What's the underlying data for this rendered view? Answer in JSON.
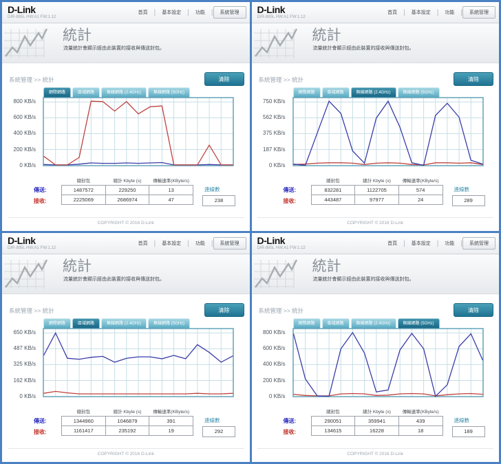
{
  "colors": {
    "frame_blue": "#4a81c2",
    "teal_accent": "#2a7d96",
    "send_line_blue": "#3b3ba8",
    "receive_line_red": "#c0413c"
  },
  "shared": {
    "logo": "D-Link",
    "model": "DIR-895L HW:A1 FW:1.12",
    "nav": {
      "home": "首頁",
      "basic_settings": "基本設定",
      "features": "功能",
      "management": "系統管理",
      "separator": "|"
    },
    "title": "統計",
    "subtitle": "流量統計會顯示經由此裝置的接收與傳送封包。",
    "breadcrumb": "系統管理 >> 統計",
    "clear_button": "清除",
    "tabs": [
      {
        "label": "網際網路"
      },
      {
        "label": "區域網路"
      },
      {
        "label": "無線網路 (2.4GHz)"
      },
      {
        "label": "無線網路 (5GHz)"
      }
    ],
    "table_headers": {
      "packets": "總封包",
      "kbytes": "總計 Kbyte (s)",
      "rate": "傳輸速率(KByte/s)"
    },
    "row_labels": {
      "send": "傳送:",
      "receive": "接收:"
    },
    "connections_label": "連線數",
    "footer": "COPYRIGHT © 2016 D-Link"
  },
  "quadrants": [
    {
      "name": "internet",
      "active_tab": 0,
      "chart": {
        "type": "line",
        "ymax": 800,
        "yticks": [
          "800 KB/s",
          "600 KB/s",
          "400 KB/s",
          "200 KB/s",
          "0 KB/s"
        ],
        "series": [
          {
            "name": "send",
            "color": "#3b3ba8",
            "values": [
              10,
              5,
              5,
              15,
              30,
              25,
              25,
              30,
              25,
              30,
              35,
              5,
              5,
              5,
              10,
              5,
              5
            ]
          },
          {
            "name": "receive",
            "color": "#c0413c",
            "values": [
              115,
              5,
              5,
              100,
              810,
              805,
              685,
              805,
              650,
              740,
              750,
              5,
              5,
              5,
              255,
              5,
              5
            ]
          }
        ]
      },
      "table": {
        "send": {
          "packets": "1487572",
          "kbytes": "229250",
          "rate": "13"
        },
        "receive": {
          "packets": "2225069",
          "kbytes": "2686974",
          "rate": "47"
        }
      },
      "connections": "238"
    },
    {
      "name": "wireless-2.4ghz",
      "active_tab": 2,
      "chart": {
        "type": "line",
        "ymax": 750,
        "yticks": [
          "750 KB/s",
          "562 KB/s",
          "375 KB/s",
          "187 KB/s",
          "0 KB/s"
        ],
        "series": [
          {
            "name": "receive",
            "color": "#c0413c",
            "values": [
              10,
              15,
              25,
              30,
              30,
              25,
              10,
              25,
              30,
              25,
              10,
              5,
              30,
              30,
              25,
              30,
              10
            ]
          },
          {
            "name": "send",
            "color": "#3b3ba8",
            "values": [
              15,
              0,
              380,
              760,
              615,
              170,
              25,
              560,
              760,
              450,
              30,
              0,
              590,
              735,
              570,
              60,
              15
            ]
          }
        ]
      },
      "table": {
        "send": {
          "packets": "832281",
          "kbytes": "1122705",
          "rate": "574"
        },
        "receive": {
          "packets": "443487",
          "kbytes": "97977",
          "rate": "24"
        }
      },
      "connections": "289"
    },
    {
      "name": "lan",
      "active_tab": 1,
      "chart": {
        "type": "line",
        "ymax": 650,
        "yticks": [
          "650 KB/s",
          "487 KB/s",
          "325 KB/s",
          "162 KB/s",
          "0 KB/s"
        ],
        "series": [
          {
            "name": "receive",
            "color": "#c0413c",
            "values": [
              30,
              50,
              35,
              25,
              25,
              25,
              25,
              25,
              25,
              25,
              25,
              25,
              25,
              30,
              25,
              25,
              30
            ]
          },
          {
            "name": "send",
            "color": "#3b3ba8",
            "values": [
              420,
              650,
              390,
              380,
              400,
              410,
              350,
              390,
              405,
              405,
              385,
              420,
              385,
              530,
              450,
              350,
              415
            ]
          }
        ]
      },
      "table": {
        "send": {
          "packets": "1344960",
          "kbytes": "1046879",
          "rate": "391"
        },
        "receive": {
          "packets": "1161417",
          "kbytes": "235192",
          "rate": "19"
        }
      },
      "connections": "292"
    },
    {
      "name": "wireless-5ghz",
      "active_tab": 3,
      "chart": {
        "type": "line",
        "ymax": 800,
        "yticks": [
          "800 KB/s",
          "600 KB/s",
          "400 KB/s",
          "200 KB/s",
          "0 KB/s"
        ],
        "series": [
          {
            "name": "receive",
            "color": "#c0413c",
            "values": [
              25,
              10,
              5,
              5,
              30,
              35,
              30,
              10,
              15,
              30,
              35,
              30,
              5,
              20,
              30,
              35,
              25
            ]
          },
          {
            "name": "send",
            "color": "#3b3ba8",
            "values": [
              790,
              220,
              5,
              0,
              600,
              805,
              545,
              55,
              80,
              585,
              795,
              600,
              0,
              145,
              630,
              790,
              455
            ]
          }
        ]
      },
      "table": {
        "send": {
          "packets": "290051",
          "kbytes": "359941",
          "rate": "439"
        },
        "receive": {
          "packets": "134615",
          "kbytes": "16228",
          "rate": "18"
        }
      },
      "connections": "189"
    }
  ]
}
